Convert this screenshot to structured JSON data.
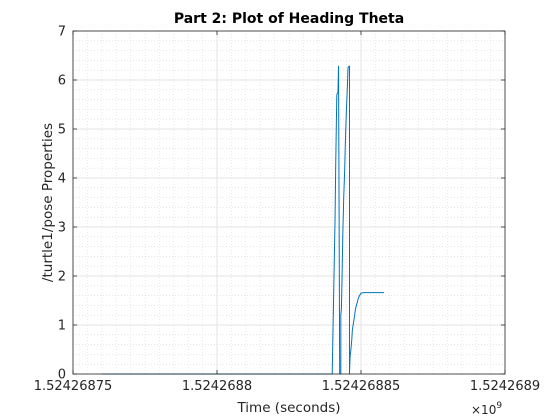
{
  "chart_data": {
    "type": "line",
    "title": "Part 2: Plot of Heading Theta",
    "xlabel": "Time (seconds)",
    "ylabel": "/turtle1/pose Properties",
    "x_multiplier_base": "×10",
    "x_multiplier_exp": "9",
    "xlim": [
      1.52426875,
      1.5242689
    ],
    "ylim": [
      0,
      7
    ],
    "x_ticks": [
      1.52426875,
      1.5242688,
      1.52426885,
      1.5242689
    ],
    "x_tick_labels": [
      "1.52426875",
      "1.5242688",
      "1.52426885",
      "1.5242689"
    ],
    "y_ticks": [
      0,
      1,
      2,
      3,
      4,
      5,
      6,
      7
    ],
    "y_tick_labels": [
      "0",
      "1",
      "2",
      "3",
      "4",
      "5",
      "6",
      "7"
    ],
    "grid": true,
    "minor_grid": true,
    "series_color": "#0072bd",
    "series": [
      {
        "x": [
          1.52426876,
          1.52426884,
          1.524268841,
          1.5242688412,
          1.5242688416,
          1.524268842,
          1.5242688422,
          1.5242688426,
          1.524268843,
          1.524268843,
          1.5242688432,
          1.5242688434,
          1.5242688437,
          1.524268844,
          1.5242688443,
          1.5242688446,
          1.524268845,
          1.5242688452,
          1.5242688455,
          1.5242688458,
          1.524268846,
          1.524268846,
          1.5242688462,
          1.5242688465,
          1.5242688468,
          1.524268847,
          1.5242688474,
          1.5242688478,
          1.524268848,
          1.5242688484,
          1.5242688488,
          1.524268849,
          1.5242688495,
          1.52426885,
          1.524268851,
          1.524268852,
          1.5242688527,
          1.524268853,
          1.524268854,
          1.524268855,
          1.524268856,
          1.524268858
        ],
        "y": [
          0,
          0,
          3.2,
          4.2,
          5.7,
          5.75,
          6.28,
          0,
          0,
          1.2,
          1.35,
          1.9,
          2.9,
          3.6,
          4.1,
          4.8,
          5.5,
          5.75,
          6.25,
          6.28,
          6.28,
          0,
          0.35,
          0.5,
          0.7,
          0.9,
          1.05,
          1.2,
          1.3,
          1.4,
          1.48,
          1.54,
          1.6,
          1.65,
          1.66,
          1.66,
          1.66,
          1.66,
          1.66,
          1.66,
          1.66,
          1.66
        ]
      }
    ]
  }
}
